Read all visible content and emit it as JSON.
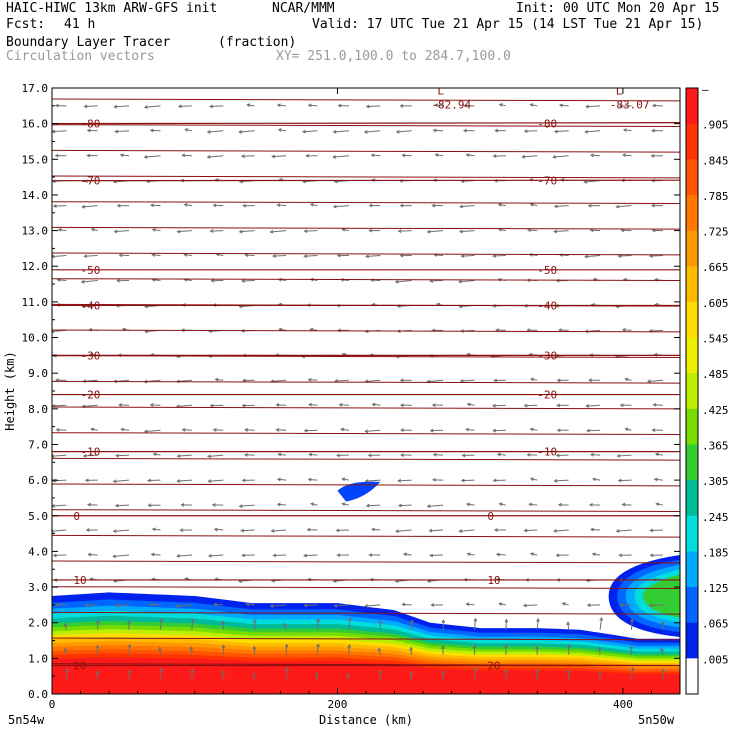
{
  "header": {
    "model": "HAIC-HIWC 13km ARW-GFS init",
    "org": "NCAR/MMM",
    "init": "Init: 00 UTC Mon 20 Apr 15",
    "fcst_label": "Fcst:",
    "fcst_value": "41 h",
    "valid": "Valid: 17 UTC Tue 21 Apr 15 (14 LST Tue 21 Apr 15)",
    "field_name": "Boundary Layer Tracer",
    "field_units": "(fraction)",
    "overlay": "Circulation vectors",
    "xy": "XY= 251.0,100.0 to 284.7,100.0"
  },
  "chart_data": {
    "type": "heatmap",
    "xlabel": "Distance (km)",
    "ylabel": "Height (km)",
    "xlim": [
      0,
      440
    ],
    "ylim": [
      0,
      17
    ],
    "x_ticks": [
      0,
      200,
      400
    ],
    "y_ticks": [
      "0.0",
      "1.0",
      "2.0",
      "3.0",
      "4.0",
      "5.0",
      "6.0",
      "7.0",
      "8.0",
      "9.0",
      "10.0",
      "11.0",
      "12.0",
      "13.0",
      "14.0",
      "15.0",
      "16.0",
      "17.0"
    ],
    "x_end_labels": {
      "left": "5n54w",
      "right": "5n50w"
    },
    "colorbar": {
      "labels": [
        "–",
        ".905",
        ".845",
        ".785",
        ".725",
        ".665",
        ".605",
        ".545",
        ".485",
        ".425",
        ".365",
        ".305",
        ".245",
        ".185",
        ".125",
        ".065",
        ".005"
      ],
      "colors": [
        "#ff1a1a",
        "#ff3300",
        "#ff5500",
        "#ff7700",
        "#ff9900",
        "#ffbb00",
        "#ffdd00",
        "#eeee00",
        "#bbee00",
        "#77dd00",
        "#33cc33",
        "#00bb99",
        "#00dddd",
        "#00aaff",
        "#0066ff",
        "#0022ee",
        "#ffffff"
      ]
    },
    "tracer_top_km": [
      [
        0,
        2.75
      ],
      [
        40,
        2.85
      ],
      [
        100,
        2.75
      ],
      [
        140,
        2.55
      ],
      [
        200,
        2.55
      ],
      [
        240,
        2.35
      ],
      [
        265,
        2.0
      ],
      [
        300,
        1.85
      ],
      [
        340,
        1.85
      ],
      [
        370,
        1.8
      ],
      [
        395,
        1.65
      ],
      [
        410,
        1.55
      ],
      [
        440,
        1.55
      ]
    ],
    "blob_6km": {
      "x": [
        200,
        230
      ],
      "y": [
        5.4,
        6.0
      ]
    },
    "blob_right": {
      "x": [
        390,
        440
      ],
      "y": [
        1.6,
        3.9
      ]
    },
    "temperature_contours": [
      {
        "label": "-80",
        "h": 16.0,
        "tilt": -0.1
      },
      {
        "label": "-70",
        "h": 14.4,
        "tilt": -0.05
      },
      {
        "label": "-50",
        "h": 11.9,
        "tilt": 0.0
      },
      {
        "label": "-40",
        "h": 10.9,
        "tilt": 0.0
      },
      {
        "label": "-30",
        "h": 9.5,
        "tilt": 0.0
      },
      {
        "label": "-20",
        "h": 8.4,
        "tilt": 0.0
      },
      {
        "label": "-10",
        "h": 6.8,
        "tilt": 0.0
      },
      {
        "label": "0",
        "h": 5.0,
        "tilt": 0.0
      },
      {
        "label": "10",
        "h": 3.2,
        "tilt": 0.0
      },
      {
        "label": "20",
        "h": 0.8,
        "tilt": 0.0
      }
    ],
    "pressure_lows": [
      {
        "label": "L",
        "value": "-82.94",
        "x": 270,
        "h": 16.7
      },
      {
        "label": "L",
        "value": "-83.07",
        "x": 395,
        "h": 16.7
      }
    ]
  }
}
